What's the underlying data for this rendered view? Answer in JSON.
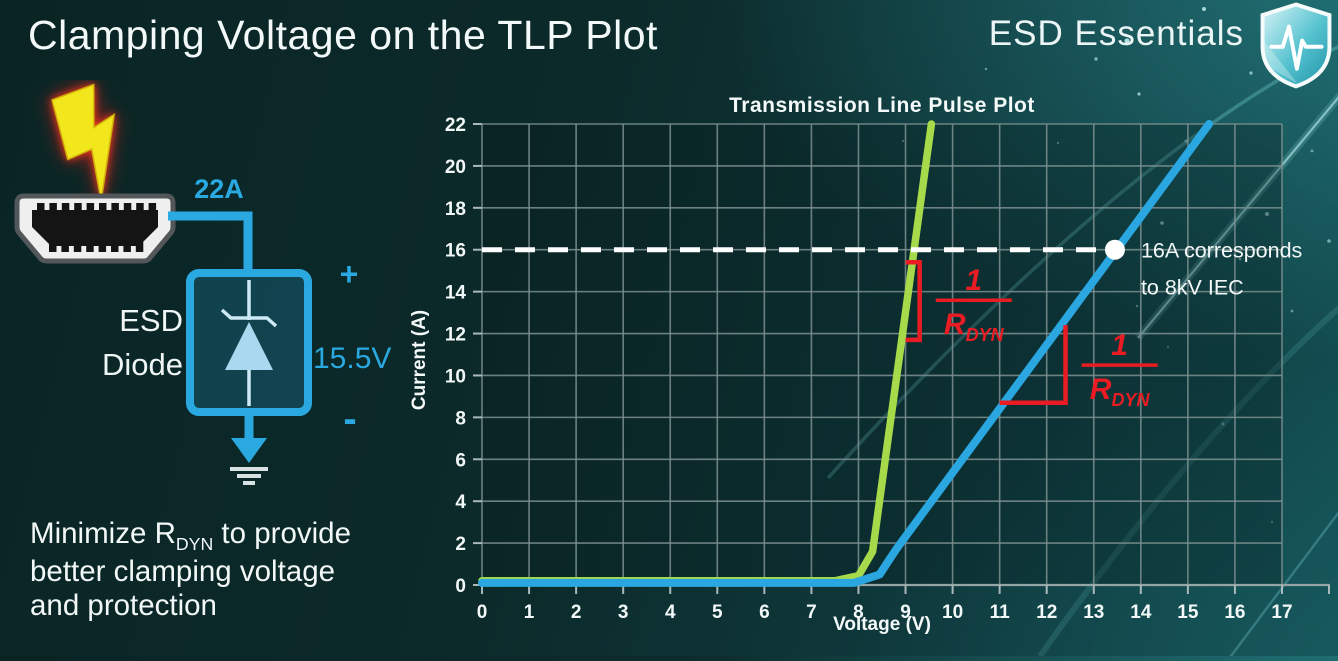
{
  "slide": {
    "title": "Clamping Voltage on the TLP Plot",
    "brand": "ESD Essentials"
  },
  "diagram": {
    "surge_current": "22A",
    "device_line1": "ESD",
    "device_line2": "Diode",
    "plus": "+",
    "minus": "-",
    "clamp_voltage": "15.5V"
  },
  "note": {
    "line1_prefix": "Minimize R",
    "line1_sub": "DYN",
    "line1_suffix": " to provide",
    "line2": "better clamping voltage",
    "line3": "and protection"
  },
  "chart_data": {
    "type": "line",
    "title": "Transmission Line Pulse Plot",
    "xlabel": "Voltage (V)",
    "ylabel": "Current (A)",
    "xlim": [
      0,
      17
    ],
    "ylim": [
      0,
      22
    ],
    "grid": true,
    "x_ticks": [
      0,
      1,
      2,
      3,
      4,
      5,
      6,
      7,
      8,
      9,
      10,
      11,
      12,
      13,
      14,
      15,
      16,
      17
    ],
    "y_ticks": [
      0,
      2,
      4,
      6,
      8,
      10,
      12,
      14,
      16,
      18,
      20,
      22
    ],
    "series": [
      {
        "name": "green curve (low RDYN ESD diode)",
        "color": "#a6da4b",
        "width": 7.5,
        "points": [
          [
            0,
            0.2
          ],
          [
            7.5,
            0.2
          ],
          [
            8.0,
            0.45
          ],
          [
            8.3,
            1.6
          ],
          [
            9.55,
            22
          ]
        ]
      },
      {
        "name": "blue curve (high RDYN ESD diode)",
        "color": "#2aa7e0",
        "width": 8,
        "points": [
          [
            0,
            0.1
          ],
          [
            7.9,
            0.1
          ],
          [
            8.45,
            0.5
          ],
          [
            8.8,
            1.7
          ],
          [
            15.45,
            22
          ]
        ]
      }
    ],
    "reference_line": {
      "y": 16,
      "style": "dashed",
      "color": "#ffffff"
    },
    "marker": {
      "x": 13.45,
      "y": 16,
      "color": "#ffffff",
      "label_lines": [
        "16A corresponds",
        "to 8kV IEC"
      ]
    },
    "annotations": [
      {
        "numerator": "1",
        "den_base": "R",
        "den_sub": "DYN",
        "color": "#e91c23",
        "indicator": {
          "type": "bracket",
          "x": 9.3,
          "y1": 11.7,
          "y2": 15.4
        },
        "pos": {
          "x": 10.45,
          "y": 13.4
        }
      },
      {
        "numerator": "1",
        "den_base": "R",
        "den_sub": "DYN",
        "color": "#e91c23",
        "indicator": {
          "type": "angle",
          "x1": 11.0,
          "x2": 12.4,
          "y1": 8.7,
          "y2": 12.4
        },
        "pos": {
          "x": 13.55,
          "y": 10.3
        }
      }
    ]
  }
}
